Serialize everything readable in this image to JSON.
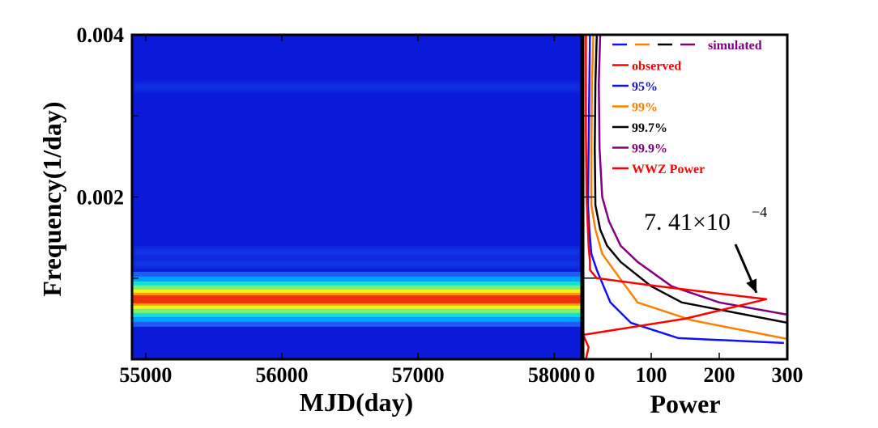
{
  "chart_data": [
    {
      "type": "heatmap",
      "title": "",
      "xlabel": "MJD(day)",
      "ylabel": "Frequency(1/day)",
      "xlim": [
        54900,
        58200
      ],
      "ylim": [
        0,
        0.004
      ],
      "x_ticks": [
        55000,
        56000,
        57000,
        58000
      ],
      "x_tick_labels": [
        "55000",
        "56000",
        "57000",
        "58000"
      ],
      "y_ticks": [
        0.002,
        0.004
      ],
      "y_tick_labels": [
        "0.002",
        "0.004"
      ],
      "peak_frequency": 0.00074,
      "secondary_bands": [
        0.00118,
        0.00132,
        0.00336
      ],
      "colormap": [
        "#0a1ad8",
        "#1f5cf5",
        "#00a0ff",
        "#15e0d8",
        "#80f070",
        "#f5f020",
        "#ffa000",
        "#f03010"
      ]
    },
    {
      "type": "line",
      "title": "",
      "xlabel": "Power",
      "ylabel": "",
      "xlim": [
        0,
        300
      ],
      "ylim": [
        0,
        0.004
      ],
      "x_ticks": [
        0,
        100,
        200,
        300
      ],
      "x_tick_labels": [
        "0",
        "100",
        "200",
        "300"
      ],
      "legend": {
        "position": "top-right",
        "entries": [
          {
            "label": "simulated",
            "color": "#800080",
            "dash_colors": [
              "#1010ff",
              "#ff8000",
              "#000000",
              "#800080"
            ]
          },
          {
            "label": "observed",
            "color": "#ff0000"
          },
          {
            "label": "95%",
            "color": "#1010ff"
          },
          {
            "label": "99%",
            "color": "#ff8000"
          },
          {
            "label": "99.7%",
            "color": "#000000"
          },
          {
            "label": "99.9%",
            "color": "#800080"
          },
          {
            "label": "WWZ Power",
            "color": "#ff0000"
          }
        ]
      },
      "series": [
        {
          "name": "95%",
          "color": "#1010ff",
          "points": [
            [
              10,
              0.004
            ],
            [
              9,
              0.0034
            ],
            [
              8,
              0.0026
            ],
            [
              7,
              0.0019
            ],
            [
              9,
              0.0016
            ],
            [
              12,
              0.0013
            ],
            [
              20,
              0.0011
            ],
            [
              40,
              0.0007
            ],
            [
              70,
              0.00045
            ],
            [
              140,
              0.00026
            ],
            [
              295,
              0.0002
            ]
          ]
        },
        {
          "name": "99%",
          "color": "#ff8000",
          "points": [
            [
              15,
              0.004
            ],
            [
              13,
              0.0034
            ],
            [
              12,
              0.0026
            ],
            [
              12,
              0.0019
            ],
            [
              18,
              0.0016
            ],
            [
              28,
              0.0013
            ],
            [
              45,
              0.0011
            ],
            [
              80,
              0.0007
            ],
            [
              160,
              0.00048
            ],
            [
              300,
              0.00025
            ]
          ]
        },
        {
          "name": "99.7%",
          "color": "#000000",
          "points": [
            [
              20,
              0.004
            ],
            [
              18,
              0.0034
            ],
            [
              17,
              0.0026
            ],
            [
              18,
              0.0019
            ],
            [
              25,
              0.0016
            ],
            [
              35,
              0.0014
            ],
            [
              55,
              0.0012
            ],
            [
              100,
              0.0009
            ],
            [
              145,
              0.0007
            ],
            [
              300,
              0.00045
            ]
          ]
        },
        {
          "name": "99.9%",
          "color": "#800080",
          "points": [
            [
              25,
              0.004
            ],
            [
              23,
              0.0034
            ],
            [
              24,
              0.0026
            ],
            [
              28,
              0.002
            ],
            [
              38,
              0.0017
            ],
            [
              55,
              0.0014
            ],
            [
              80,
              0.0012
            ],
            [
              130,
              0.0009
            ],
            [
              200,
              0.0007
            ],
            [
              300,
              0.00055
            ]
          ]
        },
        {
          "name": "WWZ Power",
          "color": "#ff0000",
          "points": [
            [
              4,
              0.004
            ],
            [
              4,
              0.0028
            ],
            [
              5,
              0.002
            ],
            [
              8,
              0.0014
            ],
            [
              10,
              0.0012
            ],
            [
              10,
              0.0011
            ],
            [
              20,
              0.001
            ],
            [
              110,
              0.0009
            ],
            [
              269,
              0.00074
            ],
            [
              150,
              0.0005
            ],
            [
              0,
              0.0003
            ],
            [
              8,
              0.00015
            ],
            [
              4,
              0.0
            ]
          ]
        }
      ],
      "annotation": {
        "base": "7. 41×10",
        "exponent": "−4",
        "points_to": [
          269,
          0.00074
        ]
      }
    }
  ]
}
